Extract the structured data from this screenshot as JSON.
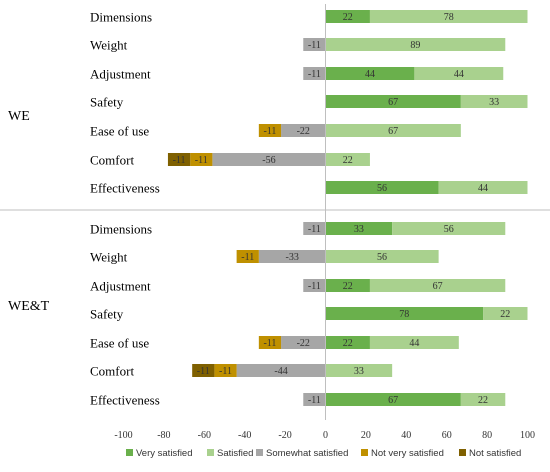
{
  "chart_data": {
    "type": "bar",
    "orientation": "horizontal",
    "stacked": "diverging",
    "xlim": [
      -100,
      100
    ],
    "xticks": [
      -100,
      -80,
      -60,
      -40,
      -20,
      0,
      20,
      40,
      60,
      80,
      100
    ],
    "grid": false,
    "legend_position": "bottom",
    "series": [
      {
        "name": "Very satisfied",
        "color": "#6ab04c"
      },
      {
        "name": "Satisfied",
        "color": "#a9d18e"
      },
      {
        "name": "Somewhat satisfied",
        "color": "#a6a6a6"
      },
      {
        "name": "Not very satisfied",
        "color": "#bf9000"
      },
      {
        "name": "Not satisfied",
        "color": "#7f6000"
      }
    ],
    "groups": [
      {
        "name": "WE",
        "rows": [
          {
            "category": "Dimensions",
            "very_satisfied": 22,
            "satisfied": 78,
            "somewhat_satisfied": 0,
            "not_very_satisfied": 0,
            "not_satisfied": 0
          },
          {
            "category": "Weight",
            "very_satisfied": 0,
            "satisfied": 89,
            "somewhat_satisfied": -11,
            "not_very_satisfied": 0,
            "not_satisfied": 0
          },
          {
            "category": "Adjustment",
            "very_satisfied": 44,
            "satisfied": 44,
            "somewhat_satisfied": -11,
            "not_very_satisfied": 0,
            "not_satisfied": 0
          },
          {
            "category": "Safety",
            "very_satisfied": 67,
            "satisfied": 33,
            "somewhat_satisfied": 0,
            "not_very_satisfied": 0,
            "not_satisfied": 0
          },
          {
            "category": "Ease of use",
            "very_satisfied": 0,
            "satisfied": 67,
            "somewhat_satisfied": -22,
            "not_very_satisfied": -11,
            "not_satisfied": 0
          },
          {
            "category": "Comfort",
            "very_satisfied": 0,
            "satisfied": 22,
            "somewhat_satisfied": -56,
            "not_very_satisfied": -11,
            "not_satisfied": -11
          },
          {
            "category": "Effectiveness",
            "very_satisfied": 56,
            "satisfied": 44,
            "somewhat_satisfied": 0,
            "not_very_satisfied": 0,
            "not_satisfied": 0
          }
        ]
      },
      {
        "name": "WE&T",
        "rows": [
          {
            "category": "Dimensions",
            "very_satisfied": 33,
            "satisfied": 56,
            "somewhat_satisfied": -11,
            "not_very_satisfied": 0,
            "not_satisfied": 0
          },
          {
            "category": "Weight",
            "very_satisfied": 0,
            "satisfied": 56,
            "somewhat_satisfied": -33,
            "not_very_satisfied": -11,
            "not_satisfied": 0
          },
          {
            "category": "Adjustment",
            "very_satisfied": 22,
            "satisfied": 67,
            "somewhat_satisfied": -11,
            "not_very_satisfied": 0,
            "not_satisfied": 0
          },
          {
            "category": "Safety",
            "very_satisfied": 78,
            "satisfied": 22,
            "somewhat_satisfied": 0,
            "not_very_satisfied": 0,
            "not_satisfied": 0
          },
          {
            "category": "Ease of use",
            "very_satisfied": 22,
            "satisfied": 44,
            "somewhat_satisfied": -22,
            "not_very_satisfied": -11,
            "not_satisfied": 0
          },
          {
            "category": "Comfort",
            "very_satisfied": 0,
            "satisfied": 33,
            "somewhat_satisfied": -44,
            "not_very_satisfied": -11,
            "not_satisfied": -11
          },
          {
            "category": "Effectiveness",
            "very_satisfied": 67,
            "satisfied": 22,
            "somewhat_satisfied": -11,
            "not_very_satisfied": 0,
            "not_satisfied": 0
          }
        ]
      }
    ]
  }
}
